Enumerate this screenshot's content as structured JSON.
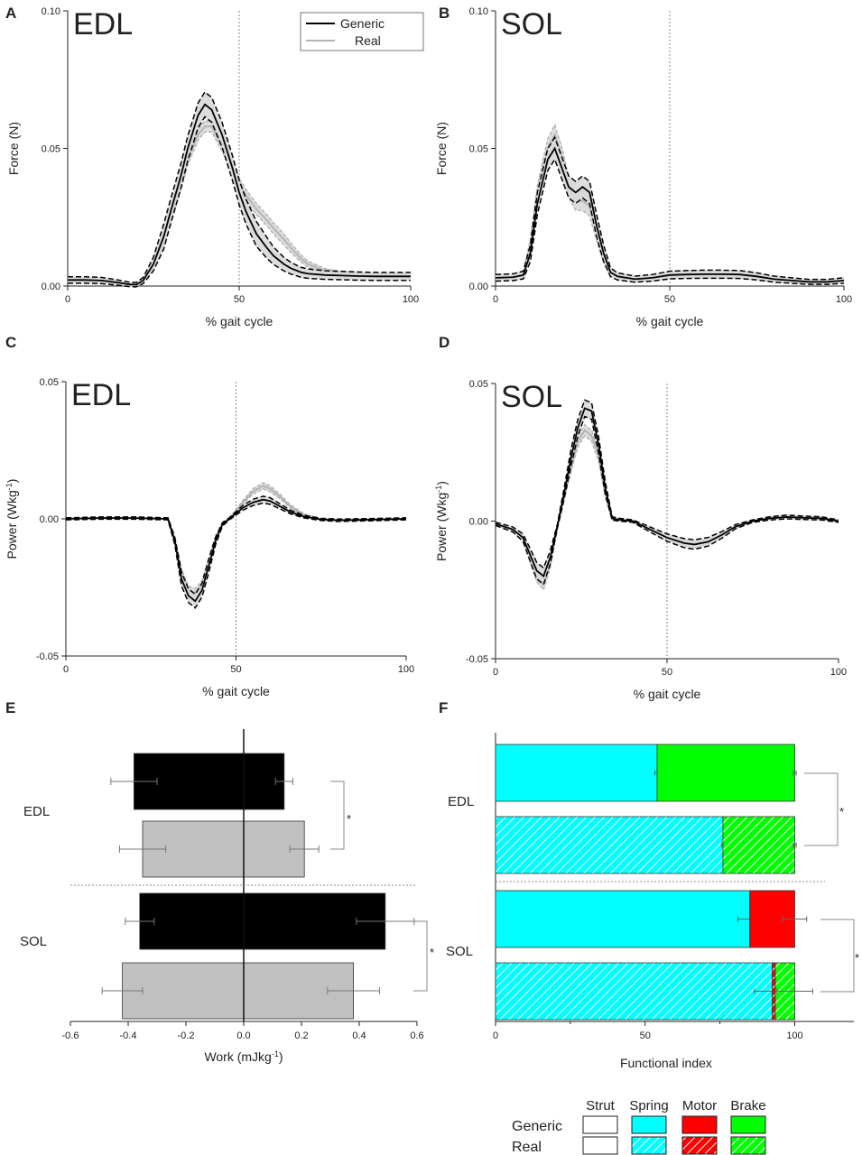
{
  "chart_data": [
    {
      "panel": "A",
      "type": "line",
      "title": "EDL",
      "xlabel": "% gait cycle",
      "ylabel": "Force (N)",
      "xlim": [
        0,
        100
      ],
      "ylim": [
        0,
        0.1
      ],
      "xticks": [
        "0",
        "50",
        "100"
      ],
      "yticks": [
        "0.00",
        "0.05",
        "0.10"
      ],
      "vline": 50,
      "legend": [
        "Generic",
        "Real"
      ],
      "series": [
        {
          "name": "Generic",
          "x": [
            0,
            5,
            10,
            15,
            18,
            20,
            22,
            25,
            28,
            30,
            33,
            35,
            38,
            40,
            42,
            45,
            48,
            50,
            52,
            55,
            58,
            60,
            63,
            65,
            68,
            70,
            75,
            80,
            85,
            90,
            95,
            100
          ],
          "y": [
            0.0022,
            0.0022,
            0.002,
            0.0012,
            0.0006,
            0.0005,
            0.002,
            0.008,
            0.018,
            0.027,
            0.04,
            0.05,
            0.062,
            0.066,
            0.064,
            0.055,
            0.043,
            0.034,
            0.027,
            0.019,
            0.014,
            0.011,
            0.008,
            0.0065,
            0.005,
            0.0045,
            0.004,
            0.0038,
            0.0036,
            0.0035,
            0.0035,
            0.0035
          ],
          "band": 0.0045
        },
        {
          "name": "Real",
          "x": [
            0,
            5,
            10,
            15,
            18,
            20,
            22,
            25,
            28,
            30,
            33,
            35,
            38,
            40,
            42,
            45,
            48,
            50,
            52,
            55,
            58,
            60,
            63,
            65,
            68,
            70,
            75,
            80,
            85,
            90,
            95,
            100
          ],
          "y": [
            0.0022,
            0.0022,
            0.002,
            0.0012,
            0.0006,
            0.0005,
            0.002,
            0.008,
            0.017,
            0.025,
            0.037,
            0.046,
            0.055,
            0.058,
            0.058,
            0.051,
            0.043,
            0.037,
            0.033,
            0.028,
            0.024,
            0.021,
            0.017,
            0.014,
            0.01,
            0.008,
            0.0055,
            0.0045,
            0.004,
            0.0038,
            0.0036,
            0.0035
          ],
          "band": 0.002
        }
      ]
    },
    {
      "panel": "B",
      "type": "line",
      "title": "SOL",
      "xlabel": "% gait cycle",
      "ylabel": "Force (N)",
      "xlim": [
        0,
        100
      ],
      "ylim": [
        0,
        0.1
      ],
      "xticks": [
        "0",
        "50",
        "100"
      ],
      "yticks": [
        "0.00",
        "0.05",
        "0.10"
      ],
      "vline": 50,
      "series": [
        {
          "name": "Generic",
          "x": [
            0,
            5,
            8,
            10,
            12,
            15,
            17,
            19,
            21,
            23,
            25,
            27,
            29,
            31,
            33,
            35,
            40,
            45,
            50,
            55,
            60,
            65,
            70,
            75,
            80,
            85,
            90,
            95,
            100
          ],
          "y": [
            0.003,
            0.0032,
            0.004,
            0.012,
            0.03,
            0.046,
            0.05,
            0.043,
            0.036,
            0.034,
            0.036,
            0.034,
            0.022,
            0.012,
            0.005,
            0.0035,
            0.0025,
            0.003,
            0.004,
            0.0042,
            0.0043,
            0.0043,
            0.0042,
            0.0035,
            0.0025,
            0.002,
            0.0015,
            0.0015,
            0.002
          ],
          "band": 0.004
        },
        {
          "name": "Real",
          "x": [
            0,
            5,
            8,
            10,
            12,
            15,
            17,
            19,
            21,
            23,
            25,
            27,
            29,
            31,
            33,
            35,
            40,
            45,
            50,
            55,
            60,
            65,
            70,
            75,
            80,
            85,
            90,
            95,
            100
          ],
          "y": [
            0.003,
            0.0032,
            0.004,
            0.014,
            0.033,
            0.05,
            0.055,
            0.047,
            0.036,
            0.031,
            0.031,
            0.029,
            0.02,
            0.011,
            0.005,
            0.0035,
            0.0025,
            0.003,
            0.004,
            0.0042,
            0.0043,
            0.0043,
            0.0042,
            0.0035,
            0.0025,
            0.002,
            0.0015,
            0.0015,
            0.002
          ],
          "band": 0.0035
        }
      ]
    },
    {
      "panel": "C",
      "type": "line",
      "title": "EDL",
      "xlabel": "% gait cycle",
      "ylabel": "Power (Wkg",
      "ylabel_sup": "-1",
      "ylabel_end": ")",
      "xlim": [
        0,
        100
      ],
      "ylim": [
        -0.05,
        0.05
      ],
      "xticks": [
        "0",
        "50",
        "100"
      ],
      "yticks": [
        "-0.05",
        "0.00",
        "0.05"
      ],
      "vline": 50,
      "series": [
        {
          "name": "Generic",
          "x": [
            0,
            10,
            20,
            30,
            32,
            34,
            36,
            38,
            40,
            42,
            44,
            46,
            48,
            50,
            52,
            55,
            58,
            60,
            63,
            66,
            70,
            75,
            80,
            90,
            100
          ],
          "y": [
            0,
            0.0003,
            0.0003,
            0,
            -0.008,
            -0.022,
            -0.028,
            -0.03,
            -0.026,
            -0.017,
            -0.008,
            -0.002,
            0,
            0.002,
            0.004,
            0.006,
            0.007,
            0.0065,
            0.0045,
            0.0025,
            0.0008,
            -0.0002,
            -0.0005,
            -0.0003,
            0
          ],
          "band": 0.0025
        },
        {
          "name": "Real",
          "x": [
            0,
            10,
            20,
            30,
            32,
            34,
            36,
            38,
            40,
            42,
            44,
            46,
            48,
            50,
            52,
            55,
            58,
            60,
            63,
            66,
            70,
            75,
            80,
            90,
            100
          ],
          "y": [
            0,
            0.0003,
            0.0003,
            0,
            -0.008,
            -0.02,
            -0.026,
            -0.027,
            -0.024,
            -0.016,
            -0.007,
            -0.002,
            0,
            0.003,
            0.006,
            0.01,
            0.012,
            0.011,
            0.008,
            0.0045,
            0.0015,
            -0.0002,
            -0.0006,
            -0.0003,
            0
          ],
          "band": 0.0015
        }
      ]
    },
    {
      "panel": "D",
      "type": "line",
      "title": "SOL",
      "xlabel": "% gait cycle",
      "ylabel": "Power (Wkg",
      "ylabel_sup": "-1",
      "ylabel_end": ")",
      "xlim": [
        0,
        100
      ],
      "ylim": [
        -0.05,
        0.05
      ],
      "xticks": [
        "0",
        "50",
        "100"
      ],
      "yticks": [
        "-0.05",
        "0.00",
        "0.05"
      ],
      "vline": 50,
      "series": [
        {
          "name": "Generic",
          "x": [
            0,
            5,
            8,
            10,
            12,
            14,
            16,
            18,
            20,
            22,
            24,
            26,
            28,
            30,
            32,
            34,
            36,
            40,
            45,
            50,
            55,
            58,
            62,
            66,
            70,
            75,
            80,
            85,
            90,
            95,
            100
          ],
          "y": [
            -0.001,
            -0.003,
            -0.006,
            -0.012,
            -0.018,
            -0.02,
            -0.013,
            -0.002,
            0.01,
            0.023,
            0.034,
            0.041,
            0.04,
            0.028,
            0.012,
            0.001,
            0.0005,
            0,
            -0.003,
            -0.006,
            -0.008,
            -0.0085,
            -0.0075,
            -0.005,
            -0.002,
            0,
            0.001,
            0.0015,
            0.0012,
            0.001,
            0
          ],
          "band": 0.003
        },
        {
          "name": "Real",
          "x": [
            0,
            5,
            8,
            10,
            12,
            14,
            16,
            18,
            20,
            22,
            24,
            26,
            28,
            30,
            32,
            34,
            36,
            40,
            45,
            50,
            55,
            58,
            62,
            66,
            70,
            75,
            80,
            85,
            90,
            95,
            100
          ],
          "y": [
            -0.001,
            -0.003,
            -0.006,
            -0.013,
            -0.02,
            -0.023,
            -0.015,
            -0.002,
            0.009,
            0.02,
            0.029,
            0.033,
            0.031,
            0.024,
            0.01,
            0.001,
            0.0005,
            0,
            -0.003,
            -0.006,
            -0.008,
            -0.0085,
            -0.0075,
            -0.005,
            -0.002,
            0,
            0.001,
            0.0015,
            0.0012,
            0.001,
            0
          ],
          "band": 0.002
        }
      ]
    },
    {
      "panel": "E",
      "type": "bar",
      "orientation": "horizontal",
      "xlabel": "Work (mJkg",
      "xlabel_sup": "-1",
      "xlabel_end": ")",
      "xlim": [
        -0.6,
        0.6
      ],
      "xticks": [
        "-0.6",
        "-0.4",
        "-0.2",
        "0.0",
        "0.2",
        "0.4",
        "0.6"
      ],
      "categories": [
        "EDL",
        "SOL"
      ],
      "bars": [
        {
          "muscle": "EDL",
          "series": "Generic",
          "neg": -0.38,
          "neg_err": 0.08,
          "pos": 0.14,
          "pos_err": 0.03
        },
        {
          "muscle": "EDL",
          "series": "Real",
          "neg": -0.35,
          "neg_err": 0.08,
          "pos": 0.21,
          "pos_err": 0.05
        },
        {
          "muscle": "SOL",
          "series": "Generic",
          "neg": -0.36,
          "neg_err": 0.05,
          "pos": 0.49,
          "pos_err": 0.1
        },
        {
          "muscle": "SOL",
          "series": "Real",
          "neg": -0.42,
          "neg_err": 0.07,
          "pos": 0.38,
          "pos_err": 0.09
        }
      ],
      "significance": [
        "*",
        "*"
      ]
    },
    {
      "panel": "F",
      "type": "bar",
      "orientation": "horizontal",
      "stacked": true,
      "xlabel": "Functional index",
      "xlim": [
        0,
        120
      ],
      "xticks": [
        "0",
        "50",
        "100"
      ],
      "categories": [
        "EDL",
        "SOL"
      ],
      "bars": [
        {
          "muscle": "EDL",
          "series": "Generic",
          "segments": [
            {
              "name": "Spring",
              "value": 54,
              "err": 0.8
            },
            {
              "name": "Brake",
              "value": 46,
              "err": 0.5
            }
          ]
        },
        {
          "muscle": "EDL",
          "series": "Real",
          "segments": [
            {
              "name": "Spring",
              "value": 76,
              "err": 0.5
            },
            {
              "name": "Brake",
              "value": 24,
              "err": 0.5
            }
          ]
        },
        {
          "muscle": "SOL",
          "series": "Generic",
          "segments": [
            {
              "name": "Spring",
              "value": 85,
              "err": 4
            },
            {
              "name": "Motor",
              "value": 15,
              "err": 4
            }
          ]
        },
        {
          "muscle": "SOL",
          "series": "Real",
          "segments": [
            {
              "name": "Spring",
              "value": 92.5,
              "err": 6
            },
            {
              "name": "Motor",
              "value": 1,
              "err": 0
            },
            {
              "name": "Brake",
              "value": 6.5,
              "err": 6
            }
          ]
        }
      ],
      "significance": [
        "*",
        "*"
      ],
      "legend": {
        "columns": [
          "Strut",
          "Spring",
          "Motor",
          "Brake"
        ],
        "rows": [
          "Generic",
          "Real"
        ],
        "colors": {
          "Strut": "#ffffff",
          "Spring": "#00ffff",
          "Motor": "#ff0000",
          "Brake": "#00ff00"
        }
      }
    }
  ],
  "panel_letters": [
    "A",
    "B",
    "C",
    "D",
    "E",
    "F"
  ],
  "colors": {
    "generic": "#000000",
    "real": "#b4b4b4",
    "band": "#d9d9d9",
    "bar_generic": "#000000",
    "bar_real": "#c0c0c0"
  }
}
